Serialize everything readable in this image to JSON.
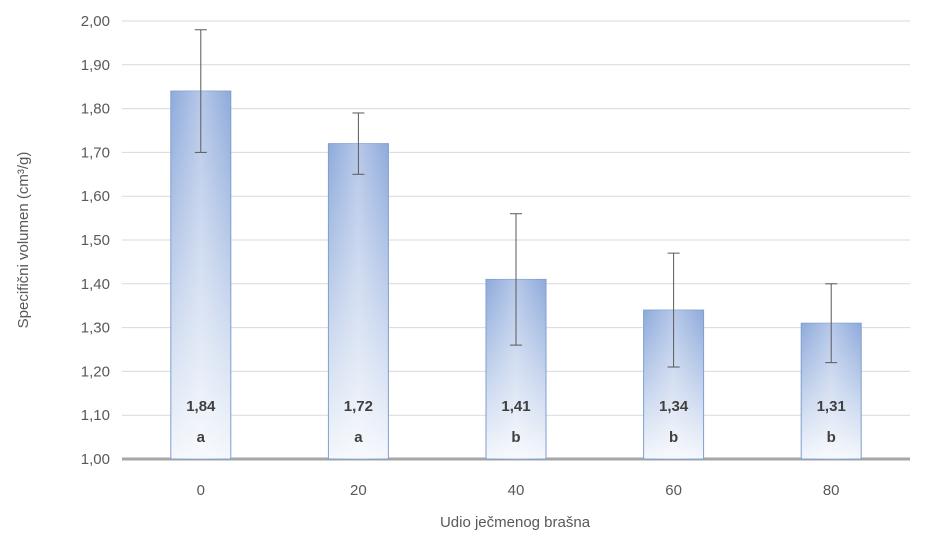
{
  "chart_data": {
    "type": "bar",
    "title": "",
    "xlabel": "Udio ječmenog brašna",
    "ylabel": "Specifični volumen (cm³/g)",
    "categories": [
      "0",
      "20",
      "40",
      "60",
      "80"
    ],
    "values": [
      1.84,
      1.72,
      1.41,
      1.34,
      1.31
    ],
    "value_labels": [
      "1,84",
      "1,72",
      "1,41",
      "1,34",
      "1,31"
    ],
    "group_letters": [
      "a",
      "a",
      "b",
      "b",
      "b"
    ],
    "error_bars": [
      0.14,
      0.07,
      0.15,
      0.13,
      0.09
    ],
    "ylim": [
      1.0,
      2.0
    ],
    "yticks": [
      "1,00",
      "1,10",
      "1,20",
      "1,30",
      "1,40",
      "1,50",
      "1,60",
      "1,70",
      "1,80",
      "1,90",
      "2,00"
    ],
    "grid": true,
    "legend": "none",
    "colors": {
      "bar_edge": "#7f9fcf",
      "bar_fill_dark": "#8eaadb",
      "bar_fill_light": "#f4f7fc",
      "grid": "#d9d9d9",
      "axis": "#a6a6a6",
      "error_bar": "#595959"
    }
  }
}
